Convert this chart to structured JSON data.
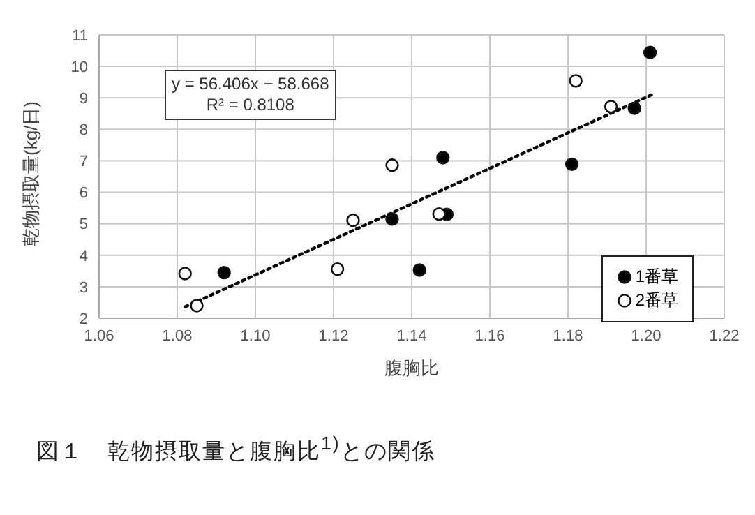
{
  "chart_data": {
    "type": "scatter",
    "title": "図１　乾物摂取量と腹胸比$^{1)}$との関係",
    "xlabel": "腹胸比",
    "ylabel": "乾物摂取量(kg/日)",
    "annotations": [
      "y = 56.406x − 58.668",
      "R² = 0.8108"
    ],
    "series": [
      {
        "name": "1番草",
        "color": "#000000",
        "x": [
          1.092,
          1.135,
          1.148,
          1.149,
          1.142,
          1.181,
          1.197,
          1.201
        ],
        "values": [
          3.45,
          5.15,
          7.1,
          5.3,
          3.53,
          6.89,
          8.67,
          10.44
        ]
      },
      {
        "name": "2番草",
        "color": "#ffffff",
        "x": [
          1.082,
          1.085,
          1.121,
          1.125,
          1.135,
          1.147,
          1.182,
          1.191
        ],
        "values": [
          3.42,
          2.4,
          3.56,
          5.11,
          6.86,
          5.31,
          9.54,
          8.72
        ]
      },
      {
        "type": "line",
        "color": "#000000",
        "line_style": "dotted",
        "marker": "none",
        "x": [
          1.082,
          1.202
        ],
        "values": [
          2.36,
          9.13
        ]
      }
    ],
    "xlim": [
      1.06,
      1.22
    ],
    "xticks": [
      1.06,
      1.08,
      {
        "value": 1.1,
        "label": "1.10"
      },
      1.12,
      1.14,
      1.16,
      1.18,
      {
        "value": 1.2,
        "label": "1.20"
      },
      1.22
    ],
    "ylim": [
      2,
      11
    ],
    "yticks": [
      2,
      3,
      4,
      5,
      6,
      7,
      8,
      9,
      10,
      11
    ],
    "grid": true,
    "legend": "bottom right",
    "marker": "circle"
  }
}
